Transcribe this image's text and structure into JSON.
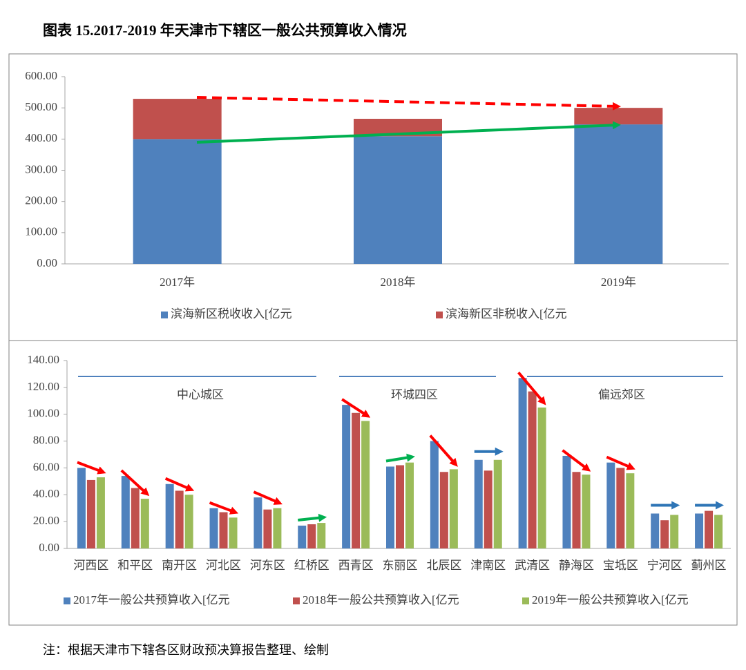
{
  "title": "图表 15.2017-2019 年天津市下辖区一般公共预算收入情况",
  "note": "注：根据天津市下辖各区财政预决算报告整理、绘制",
  "chart_data": [
    {
      "type": "bar",
      "stacked": true,
      "categories": [
        "2017年",
        "2018年",
        "2019年"
      ],
      "series": [
        {
          "name": "滨海新区税收收入[亿元",
          "color": "#4f81bd",
          "values": [
            400,
            409,
            447
          ]
        },
        {
          "name": "滨海新区非税收入[亿元",
          "color": "#c0504d",
          "values": [
            129,
            56,
            53
          ]
        }
      ],
      "ylim": [
        0,
        600
      ],
      "yticks": [
        {
          "value": 0,
          "label": "0.00"
        },
        {
          "value": 100,
          "label": "100.00"
        },
        {
          "value": 200,
          "label": "200.00"
        },
        {
          "value": 300,
          "label": "300.00"
        },
        {
          "value": 400,
          "label": "400.00"
        },
        {
          "value": 500,
          "label": "500.00"
        },
        {
          "value": 600,
          "label": "600.00"
        }
      ],
      "grid": false
    },
    {
      "type": "bar",
      "stacked": false,
      "categories": [
        "河西区",
        "和平区",
        "南开区",
        "河北区",
        "河东区",
        "红桥区",
        "西青区",
        "东丽区",
        "北辰区",
        "津南区",
        "武清区",
        "静海区",
        "宝坻区",
        "宁河区",
        "蓟州区"
      ],
      "series": [
        {
          "name": "2017年一般公共预算收入[亿元",
          "color": "#4f81bd",
          "values": [
            60,
            54,
            48,
            30,
            38,
            17,
            107,
            61,
            80,
            66,
            127,
            69,
            64,
            26,
            26
          ]
        },
        {
          "name": "2018年一般公共预算收入[亿元",
          "color": "#c0504d",
          "values": [
            51,
            45,
            43,
            27,
            29,
            18,
            101,
            62,
            57,
            58,
            117,
            57,
            60,
            21,
            28
          ]
        },
        {
          "name": "2019年一般公共预算收入[亿元",
          "color": "#9bbb59",
          "values": [
            53,
            37,
            40,
            23,
            30,
            19,
            95,
            64,
            59,
            66,
            105,
            55,
            56,
            25,
            25
          ]
        }
      ],
      "groups": [
        "中心城区",
        "环城四区",
        "偏远郊区"
      ],
      "ylim": [
        0,
        140
      ],
      "yticks": [
        {
          "value": 0,
          "label": "0.00"
        },
        {
          "value": 20,
          "label": "20.00"
        },
        {
          "value": 40,
          "label": "40.00"
        },
        {
          "value": 60,
          "label": "60.00"
        },
        {
          "value": 80,
          "label": "80.00"
        },
        {
          "value": 100,
          "label": "100.00"
        },
        {
          "value": 120,
          "label": "120.00"
        },
        {
          "value": 140,
          "label": "140.00"
        }
      ],
      "grid": false
    }
  ]
}
